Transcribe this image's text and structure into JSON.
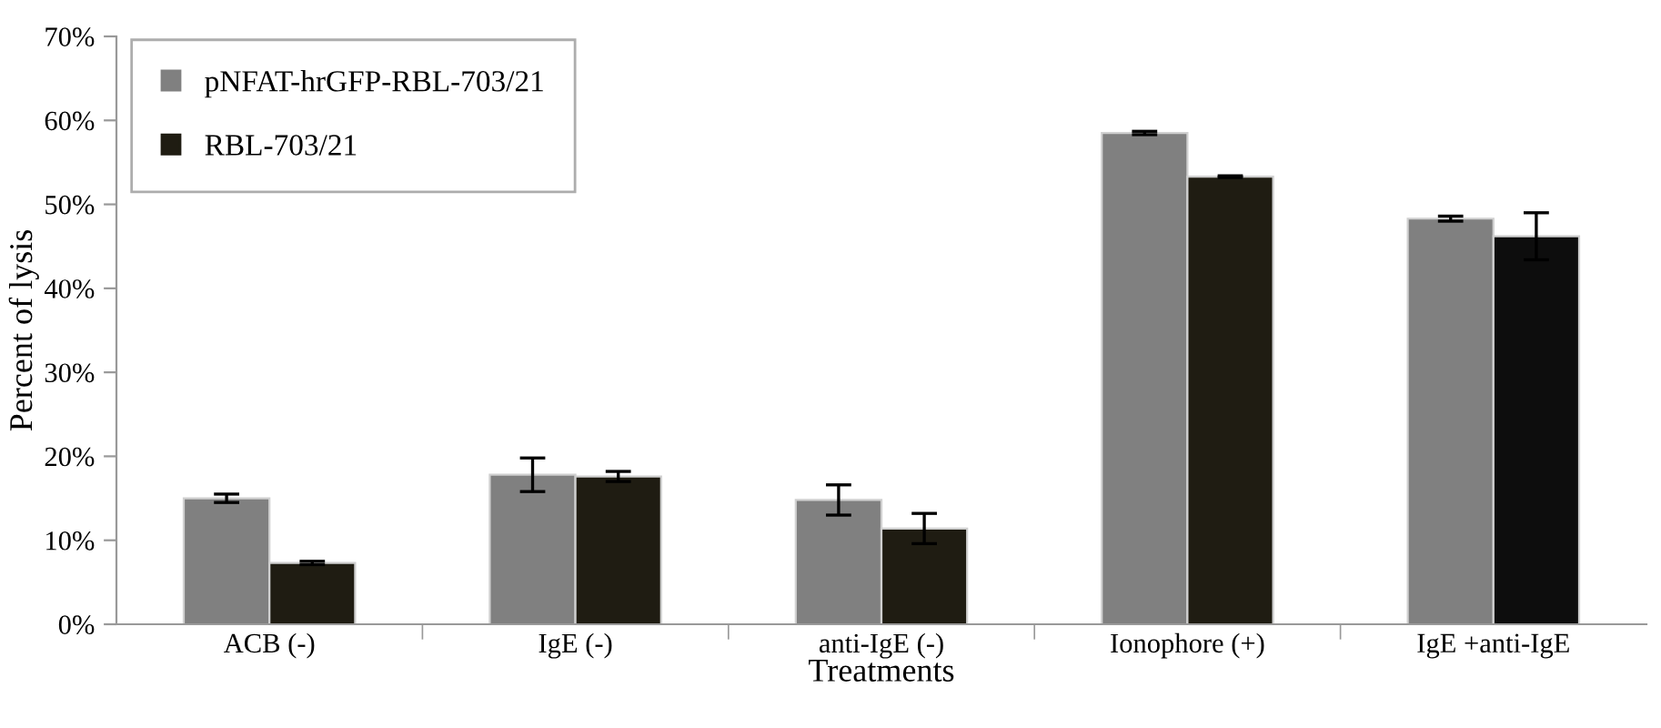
{
  "chart_data": {
    "type": "bar",
    "xlabel": "Treatments",
    "ylabel": "Percent of lysis",
    "categories": [
      "ACB (-)",
      "IgE (-)",
      "anti-IgE (-)",
      "Ionophore (+)",
      "IgE +anti-IgE"
    ],
    "series": [
      {
        "name": "pNFAT-hrGFP-RBL-703/21",
        "color": "#808080",
        "values": [
          15.0,
          17.8,
          14.8,
          58.5,
          48.3
        ],
        "errors": [
          0.5,
          2.0,
          1.8,
          0.2,
          0.3
        ]
      },
      {
        "name": "RBL-703/21",
        "color": "#1f1c12",
        "colors": [
          "#1f1c12",
          "#1f1c12",
          "#1f1c12",
          "#1f1c12",
          "#0d0d0d"
        ],
        "values": [
          7.3,
          17.6,
          11.4,
          53.3,
          46.2
        ],
        "errors": [
          0.2,
          0.6,
          1.8,
          0.1,
          2.8
        ]
      }
    ],
    "ylim": [
      0,
      70
    ],
    "yticks": [
      {
        "value": 0,
        "label": "0%"
      },
      {
        "value": 10,
        "label": "10%"
      },
      {
        "value": 20,
        "label": "20%"
      },
      {
        "value": 30,
        "label": "30%"
      },
      {
        "value": 40,
        "label": "40%"
      },
      {
        "value": 50,
        "label": "50%"
      },
      {
        "value": 60,
        "label": "60%"
      },
      {
        "value": 70,
        "label": "70%"
      }
    ],
    "legend": "top left",
    "grid": false
  }
}
